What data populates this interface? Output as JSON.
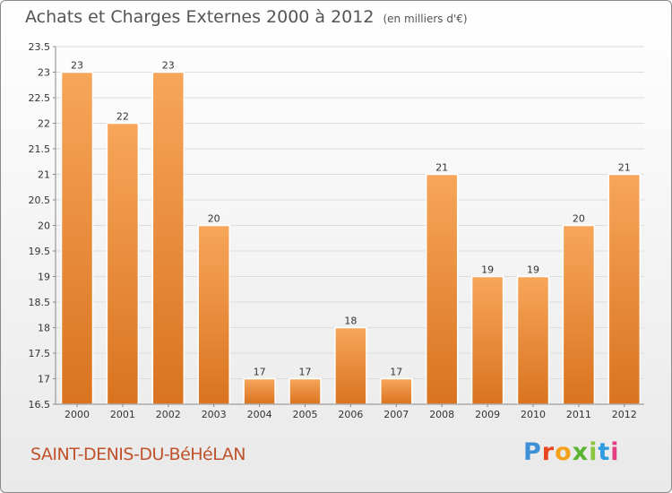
{
  "header": {
    "title": "Achats et Charges Externes 2000 à 2012",
    "subtitle": "(en milliers d'€)"
  },
  "footer": {
    "commune": "SAINT-DENIS-DU-BéHéLAN",
    "logo_letters": [
      "P",
      "r",
      "o",
      "x",
      "i",
      "t",
      "i"
    ]
  },
  "colors": {
    "bar_top": "#f7a65a",
    "bar_bottom": "#d9731f",
    "commune_text": "#c0522c"
  },
  "chart_data": {
    "type": "bar",
    "categories": [
      "2000",
      "2001",
      "2002",
      "2003",
      "2004",
      "2005",
      "2006",
      "2007",
      "2008",
      "2009",
      "2010",
      "2011",
      "2012"
    ],
    "values": [
      23,
      22,
      23,
      20,
      17,
      17,
      18,
      17,
      21,
      19,
      19,
      20,
      21
    ],
    "data_labels": [
      "23",
      "22",
      "23",
      "20",
      "17",
      "17",
      "18",
      "17",
      "21",
      "19",
      "19",
      "20",
      "21"
    ],
    "yticks": [
      "16.5",
      "17",
      "17.5",
      "18",
      "18.5",
      "19",
      "19.5",
      "20",
      "20.5",
      "21",
      "21.5",
      "22",
      "22.5",
      "23",
      "23.5"
    ],
    "ylim": [
      16.5,
      23.5
    ],
    "grid": true
  }
}
